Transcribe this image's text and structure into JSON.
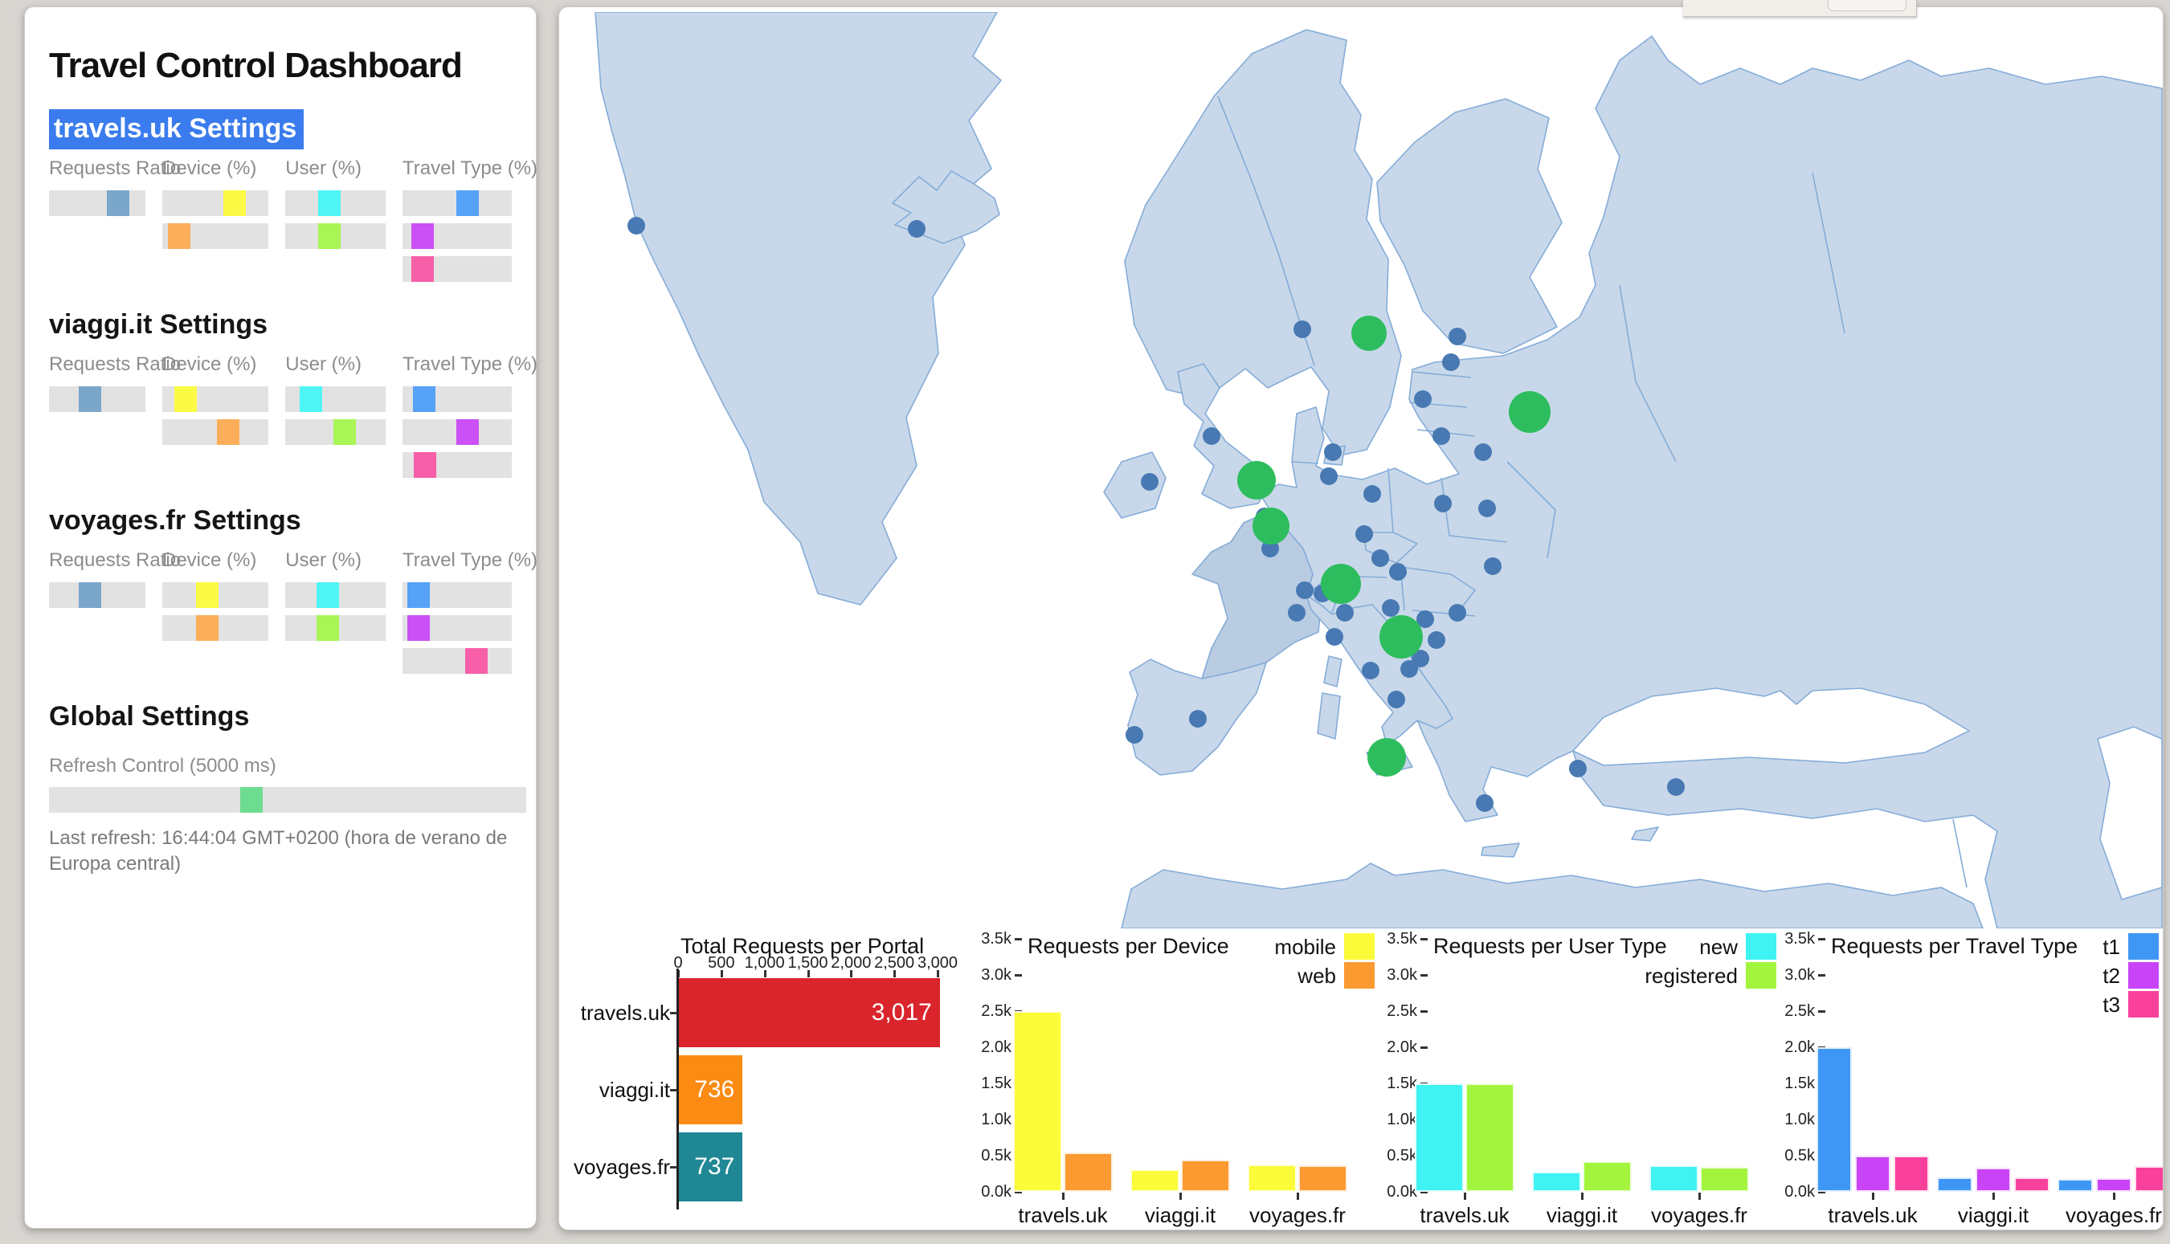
{
  "page": {
    "title": "Travel Control Dashboard"
  },
  "sidebar": {
    "group_labels": [
      "Requests Ratio",
      "Device (%)",
      "User (%)",
      "Travel Type (%)"
    ],
    "portals": [
      {
        "heading": "travels.uk Settings",
        "selected": true,
        "ratio": 0.78,
        "device": [
          0.73,
          0.07
        ],
        "user": [
          0.42,
          0.42
        ],
        "travel": [
          0.62,
          0.1,
          0.1
        ]
      },
      {
        "heading": "viaggi.it Settings",
        "selected": false,
        "ratio": 0.4,
        "device": [
          0.14,
          0.65
        ],
        "user": [
          0.18,
          0.62
        ],
        "travel": [
          0.12,
          0.62,
          0.13
        ]
      },
      {
        "heading": "voyages.fr Settings",
        "selected": false,
        "ratio": 0.4,
        "device": [
          0.4,
          0.4
        ],
        "user": [
          0.4,
          0.4
        ],
        "travel": [
          0.06,
          0.06,
          0.72
        ]
      }
    ],
    "slider_colors": {
      "ratio": "#7aa6ca",
      "device": [
        "#fbfb45",
        "#fcae5a"
      ],
      "user": [
        "#4ff5f5",
        "#a9f556"
      ],
      "travel": [
        "#55a2f7",
        "#cb50f5",
        "#f75fa8"
      ],
      "refresh": "#6edc90"
    },
    "global": {
      "heading": "Global Settings",
      "refresh_label": "Refresh Control (5000 ms)",
      "refresh_pos": 0.42,
      "last_refresh": "Last refresh: 16:44:04 GMT+0200 (hora de verano de Europa central)"
    }
  },
  "map": {
    "land_color": "#c8d8ea",
    "land_dark_color": "#b9cce2",
    "border_color": "#85acd8",
    "sea_color": "#ffffff",
    "small_dot_color": "#4879b3",
    "big_dot_color": "#2ebd5e",
    "small_dots": [
      [
        96,
        266
      ],
      [
        445,
        270
      ],
      [
        925,
        395
      ],
      [
        1118,
        404
      ],
      [
        1110,
        436
      ],
      [
        1075,
        482
      ],
      [
        1098,
        528
      ],
      [
        1150,
        548
      ],
      [
        963,
        548
      ],
      [
        958,
        578
      ],
      [
        1012,
        600
      ],
      [
        1100,
        612
      ],
      [
        1155,
        618
      ],
      [
        1162,
        690
      ],
      [
        1002,
        650
      ],
      [
        1022,
        680
      ],
      [
        1044,
        697
      ],
      [
        928,
        720
      ],
      [
        950,
        724
      ],
      [
        885,
        668
      ],
      [
        878,
        628
      ],
      [
        918,
        748
      ],
      [
        978,
        748
      ],
      [
        965,
        778
      ],
      [
        1010,
        820
      ],
      [
        1042,
        856
      ],
      [
        812,
        528
      ],
      [
        735,
        585
      ],
      [
        795,
        880
      ],
      [
        716,
        900
      ],
      [
        1078,
        756
      ],
      [
        1118,
        748
      ],
      [
        1092,
        782
      ],
      [
        1072,
        805
      ],
      [
        1058,
        818
      ],
      [
        1152,
        985
      ],
      [
        1268,
        942
      ],
      [
        1390,
        965
      ],
      [
        1035,
        742
      ]
    ],
    "big_dots": [
      [
        1008,
        400,
        22
      ],
      [
        1208,
        498,
        26
      ],
      [
        868,
        583,
        24
      ],
      [
        886,
        640,
        23
      ],
      [
        973,
        712,
        25
      ],
      [
        1048,
        778,
        27
      ],
      [
        1030,
        928,
        24
      ]
    ]
  },
  "chart_data": [
    {
      "type": "bar",
      "orientation": "horizontal",
      "title": "Total Requests per Portal",
      "categories": [
        "travels.uk",
        "viaggi.it",
        "voyages.fr"
      ],
      "values": [
        3017,
        736,
        737
      ],
      "value_labels": [
        "3,017",
        "736",
        "737"
      ],
      "bar_colors": [
        "#d9252b",
        "#fb8b13",
        "#1f8894"
      ],
      "xlim": [
        0,
        3000
      ],
      "x_ticks": [
        0,
        500,
        1000,
        1500,
        2000,
        2500,
        3000
      ],
      "x_tick_labels": [
        "0",
        "500",
        "1,000",
        "1,500",
        "2,000",
        "2,500",
        "3,000"
      ]
    },
    {
      "type": "bar",
      "title": "Requests per Device",
      "categories": [
        "travels.uk",
        "viaggi.it",
        "voyages.fr"
      ],
      "series": [
        {
          "name": "mobile",
          "color": "#fbfb3a",
          "values": [
            2500,
            310,
            380
          ]
        },
        {
          "name": "web",
          "color": "#fb9a31",
          "values": [
            550,
            450,
            370
          ]
        }
      ],
      "ylim": [
        0,
        3500
      ],
      "legend_position": "top-right",
      "y_tick_labels": [
        "0.0k",
        "0.5k",
        "1.0k",
        "1.5k",
        "2.0k",
        "2.5k",
        "3.0k",
        "3.5k"
      ]
    },
    {
      "type": "bar",
      "title": "Requests per User Type",
      "categories": [
        "travels.uk",
        "viaggi.it",
        "voyages.fr"
      ],
      "series": [
        {
          "name": "new",
          "color": "#3ff3f3",
          "values": [
            1500,
            280,
            370
          ]
        },
        {
          "name": "registered",
          "color": "#a2f53c",
          "values": [
            1500,
            420,
            350
          ]
        }
      ],
      "ylim": [
        0,
        3500
      ],
      "legend_position": "top-right",
      "y_tick_labels": [
        "0.0k",
        "0.5k",
        "1.0k",
        "1.5k",
        "2.0k",
        "2.5k",
        "3.0k",
        "3.5k"
      ]
    },
    {
      "type": "bar",
      "title": "Requests per Travel Type",
      "categories": [
        "travels.uk",
        "viaggi.it",
        "voyages.fr"
      ],
      "series": [
        {
          "name": "t1",
          "color": "#3e97f5",
          "values": [
            2000,
            200,
            180
          ]
        },
        {
          "name": "t2",
          "color": "#c943f7",
          "values": [
            500,
            330,
            190
          ]
        },
        {
          "name": "t3",
          "color": "#f9419c",
          "values": [
            500,
            200,
            360
          ]
        }
      ],
      "ylim": [
        0,
        3500
      ],
      "legend_position": "top-right",
      "y_tick_labels": [
        "0.0k",
        "0.5k",
        "1.0k",
        "1.5k",
        "2.0k",
        "2.5k",
        "3.0k",
        "3.5k"
      ]
    }
  ]
}
